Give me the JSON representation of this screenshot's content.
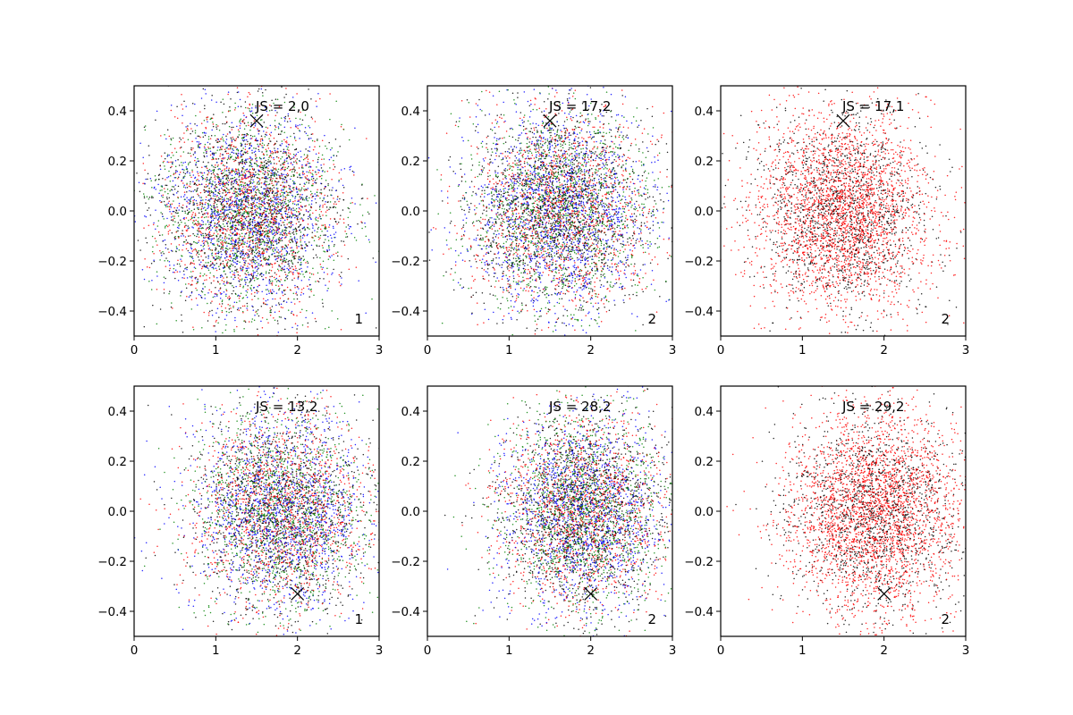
{
  "chart_data": [
    {
      "type": "scatter",
      "js_label": "JS = 2,0",
      "count_label": "1",
      "marker": [
        1.5,
        0.36
      ],
      "center": [
        1.4,
        0.0
      ],
      "spread": [
        0.55,
        0.2
      ],
      "colors": [
        "#0000ff",
        "#ff0000",
        "#008000",
        "#000000"
      ],
      "n_points": 5200,
      "xlim": [
        0,
        3
      ],
      "ylim": [
        -0.5,
        0.5
      ],
      "xticks": [
        "0",
        "1",
        "2",
        "3"
      ],
      "yticks": [
        "−0.4",
        "−0.2",
        "0.0",
        "0.2",
        "0.4"
      ],
      "seed": 11
    },
    {
      "type": "scatter",
      "js_label": "JS = 17,2",
      "count_label": "2",
      "marker": [
        1.5,
        0.36
      ],
      "center": [
        1.6,
        0.0
      ],
      "spread": [
        0.55,
        0.2
      ],
      "colors": [
        "#0000ff",
        "#ff0000",
        "#008000",
        "#000000"
      ],
      "n_points": 5600,
      "xlim": [
        0,
        3
      ],
      "ylim": [
        -0.5,
        0.5
      ],
      "xticks": [
        "0",
        "1",
        "2",
        "3"
      ],
      "yticks": [
        "−0.4",
        "−0.2",
        "0.0",
        "0.2",
        "0.4"
      ],
      "seed": 23
    },
    {
      "type": "scatter",
      "js_label": "JS = 17,1",
      "count_label": "2",
      "marker": [
        1.5,
        0.36
      ],
      "center": [
        1.5,
        0.0
      ],
      "spread": [
        0.55,
        0.2
      ],
      "colors": [
        "#ff0000",
        "#ff0000",
        "#000000"
      ],
      "n_points": 4000,
      "xlim": [
        0,
        3
      ],
      "ylim": [
        -0.5,
        0.5
      ],
      "xticks": [
        "0",
        "1",
        "2",
        "3"
      ],
      "yticks": [
        "−0.4",
        "−0.2",
        "0.0",
        "0.2",
        "0.4"
      ],
      "seed": 37
    },
    {
      "type": "scatter",
      "js_label": "JS = 13,2",
      "count_label": "1",
      "marker": [
        2.0,
        -0.33
      ],
      "center": [
        1.8,
        0.0
      ],
      "spread": [
        0.55,
        0.2
      ],
      "colors": [
        "#0000ff",
        "#ff0000",
        "#008000",
        "#000000"
      ],
      "n_points": 5200,
      "xlim": [
        0,
        3
      ],
      "ylim": [
        -0.5,
        0.5
      ],
      "xticks": [
        "0",
        "1",
        "2",
        "3"
      ],
      "yticks": [
        "−0.4",
        "−0.2",
        "0.0",
        "0.2",
        "0.4"
      ],
      "seed": 41
    },
    {
      "type": "scatter",
      "js_label": "JS = 28,2",
      "count_label": "2",
      "marker": [
        2.0,
        -0.33
      ],
      "center": [
        1.9,
        0.0
      ],
      "spread": [
        0.5,
        0.2
      ],
      "colors": [
        "#0000ff",
        "#ff0000",
        "#008000",
        "#000000"
      ],
      "n_points": 5400,
      "xlim": [
        0,
        3
      ],
      "ylim": [
        -0.5,
        0.5
      ],
      "xticks": [
        "0",
        "1",
        "2",
        "3"
      ],
      "yticks": [
        "−0.4",
        "−0.2",
        "0.0",
        "0.2",
        "0.4"
      ],
      "seed": 53
    },
    {
      "type": "scatter",
      "js_label": "JS = 29,2",
      "count_label": "2",
      "marker": [
        2.0,
        -0.33
      ],
      "center": [
        1.9,
        0.0
      ],
      "spread": [
        0.55,
        0.2
      ],
      "colors": [
        "#ff0000",
        "#ff0000",
        "#000000"
      ],
      "n_points": 4200,
      "xlim": [
        0,
        3
      ],
      "ylim": [
        -0.5,
        0.5
      ],
      "xticks": [
        "0",
        "1",
        "2",
        "3"
      ],
      "yticks": [
        "−0.4",
        "−0.2",
        "0.0",
        "0.2",
        "0.4"
      ],
      "seed": 67
    }
  ]
}
